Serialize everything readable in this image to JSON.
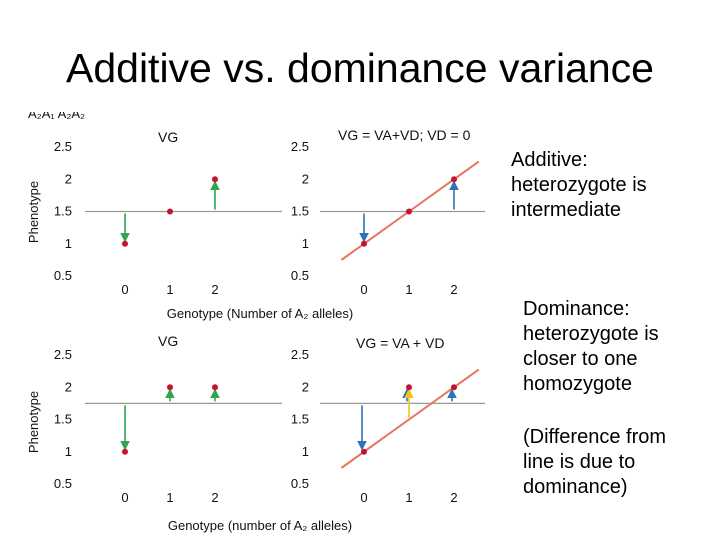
{
  "slide": {
    "title": "Additive vs. dominance variance",
    "clipped_caption": "A₂A₁ A₂A₂",
    "text_additive": [
      "Additive:",
      "heterozygote is",
      "intermediate"
    ],
    "text_dominance": [
      "Dominance:",
      "heterozygote is",
      "closer to one",
      "homozygote"
    ],
    "text_note": [
      "(Difference from",
      "line is due to",
      "dominance)"
    ]
  },
  "colors": {
    "point": "#c4122f",
    "regression": "#e8755a",
    "mean_line": "#999999",
    "arrow_green": "#2ea84f",
    "arrow_blue": "#2f72b8",
    "arrow_yellow": "#f2c21b"
  },
  "figure": {
    "y_ticks": [
      "0.5",
      "1",
      "1.5",
      "2",
      "2.5"
    ],
    "x_ticks": [
      "0",
      "1",
      "2"
    ],
    "ylabel": "Phenotype",
    "xlabel_top": "Genotype (Number of A₂ alleles)",
    "xlabel_bottom": "Genotype (number of A₂ alleles)",
    "labels": {
      "vg": "VG",
      "additive_eq": "VG = VA+VD; VD = 0",
      "dominance_eq": "VG = VA + VD"
    }
  },
  "chart_data": [
    {
      "type": "scatter",
      "name": "additive-left",
      "title": "VG",
      "x": [
        0,
        1,
        2
      ],
      "y": [
        1,
        1.5,
        2
      ],
      "mean": 1.5,
      "ylim": [
        0.5,
        2.5
      ]
    },
    {
      "type": "scatter",
      "name": "additive-right",
      "title": "VG = VA+VD; VD = 0",
      "x": [
        0,
        1,
        2
      ],
      "y": [
        1,
        1.5,
        2
      ],
      "mean": 1.5,
      "regression": [
        1,
        1.5,
        2
      ],
      "ylim": [
        0.5,
        2.5
      ]
    },
    {
      "type": "scatter",
      "name": "dominance-left",
      "title": "VG",
      "x": [
        0,
        1,
        2
      ],
      "y": [
        1,
        2,
        2
      ],
      "mean": 1.75,
      "ylim": [
        0.5,
        2.5
      ]
    },
    {
      "type": "scatter",
      "name": "dominance-right",
      "title": "VG = VA + VD",
      "x": [
        0,
        1,
        2
      ],
      "y": [
        1,
        2,
        2
      ],
      "mean": 1.75,
      "regression": [
        1.0,
        1.5,
        2.0
      ],
      "ylim": [
        0.5,
        2.5
      ]
    }
  ]
}
